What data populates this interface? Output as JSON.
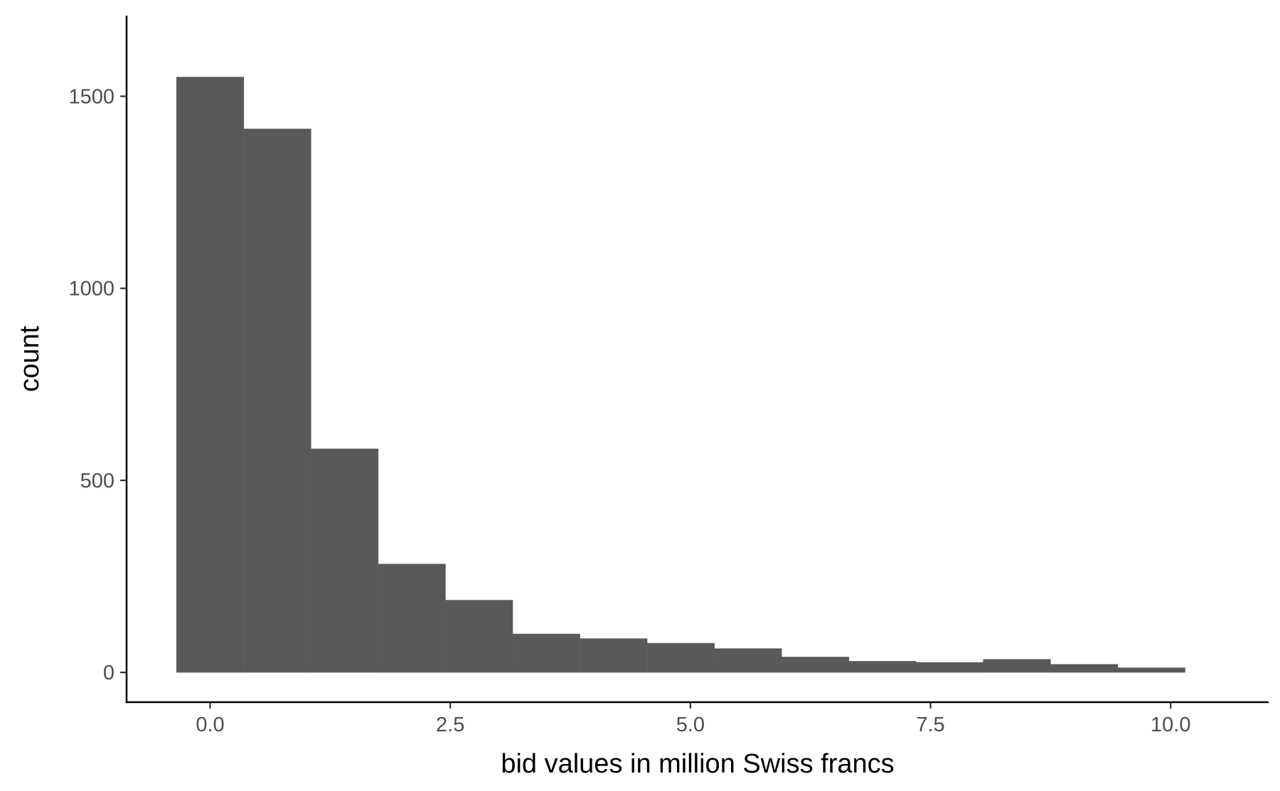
{
  "chart_data": {
    "type": "bar",
    "title": "",
    "xlabel": "bid values in million Swiss francs",
    "ylabel": "count",
    "bins": [
      {
        "x0": -0.35,
        "x1": 0.35,
        "count": 1550
      },
      {
        "x0": 0.35,
        "x1": 1.05,
        "count": 1415
      },
      {
        "x0": 1.05,
        "x1": 1.75,
        "count": 582
      },
      {
        "x0": 1.75,
        "x1": 2.45,
        "count": 282
      },
      {
        "x0": 2.45,
        "x1": 3.15,
        "count": 188
      },
      {
        "x0": 3.15,
        "x1": 3.85,
        "count": 100
      },
      {
        "x0": 3.85,
        "x1": 4.55,
        "count": 88
      },
      {
        "x0": 4.55,
        "x1": 5.25,
        "count": 76
      },
      {
        "x0": 5.25,
        "x1": 5.95,
        "count": 62
      },
      {
        "x0": 5.95,
        "x1": 6.65,
        "count": 40
      },
      {
        "x0": 6.65,
        "x1": 7.35,
        "count": 29
      },
      {
        "x0": 7.35,
        "x1": 8.05,
        "count": 26
      },
      {
        "x0": 8.05,
        "x1": 8.75,
        "count": 34
      },
      {
        "x0": 8.75,
        "x1": 9.45,
        "count": 21
      },
      {
        "x0": 9.45,
        "x1": 10.15,
        "count": 12
      }
    ],
    "xlim": [
      -0.87,
      11.02
    ],
    "ylim": [
      -77.5,
      1710
    ],
    "x_ticks": [
      {
        "value": 0,
        "label": "0.0"
      },
      {
        "value": 2.5,
        "label": "2.5"
      },
      {
        "value": 5,
        "label": "5.0"
      },
      {
        "value": 7.5,
        "label": "7.5"
      },
      {
        "value": 10,
        "label": "10.0"
      }
    ],
    "y_ticks": [
      {
        "value": 0,
        "label": "0"
      },
      {
        "value": 500,
        "label": "500"
      },
      {
        "value": 1000,
        "label": "1000"
      },
      {
        "value": 1500,
        "label": "1500"
      }
    ],
    "bar_color": "#595959",
    "grid": false,
    "legend": "none"
  }
}
